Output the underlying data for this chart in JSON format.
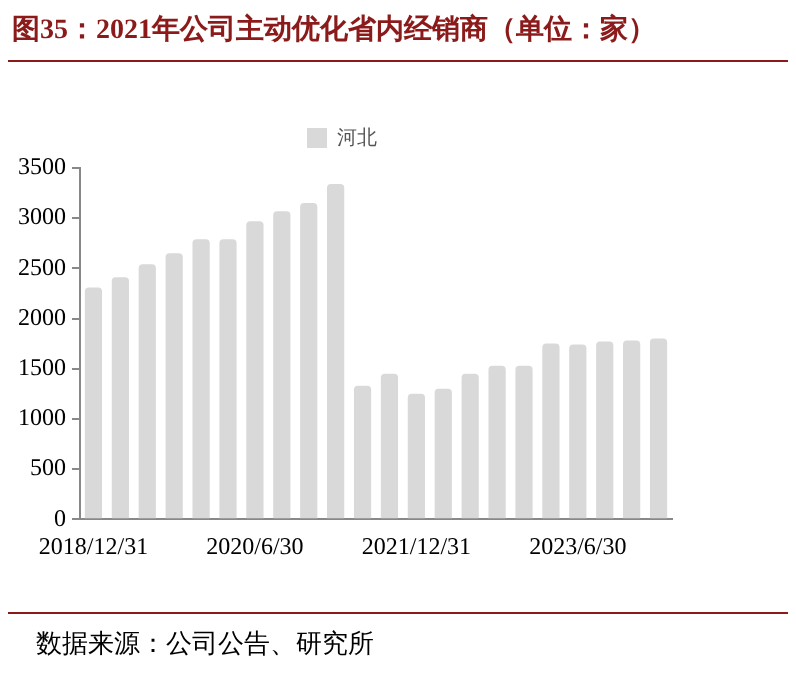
{
  "chart_data": {
    "type": "bar",
    "title": "图35：2021年公司主动优化省内经销商（单位：家）",
    "categories": [
      "2018/12/31",
      null,
      null,
      null,
      null,
      null,
      "2020/6/30",
      null,
      null,
      null,
      null,
      null,
      "2021/12/31",
      null,
      null,
      null,
      null,
      null,
      "2023/6/30",
      null,
      null,
      null
    ],
    "series": [
      {
        "name": "河北",
        "color": "#d9d9d9",
        "values": [
          2310,
          2410,
          2540,
          2650,
          2790,
          2790,
          2970,
          3070,
          3150,
          3340,
          1330,
          1450,
          1250,
          1300,
          1450,
          1530,
          1530,
          1750,
          1740,
          1770,
          1780,
          1800
        ]
      }
    ],
    "ylim": [
      0,
      3500
    ],
    "yticks": [
      0,
      500,
      1000,
      1500,
      2000,
      2500,
      3000,
      3500
    ],
    "grid": false,
    "legend": "top",
    "annotations": [
      "数据来源：公司公告、研究所"
    ]
  }
}
